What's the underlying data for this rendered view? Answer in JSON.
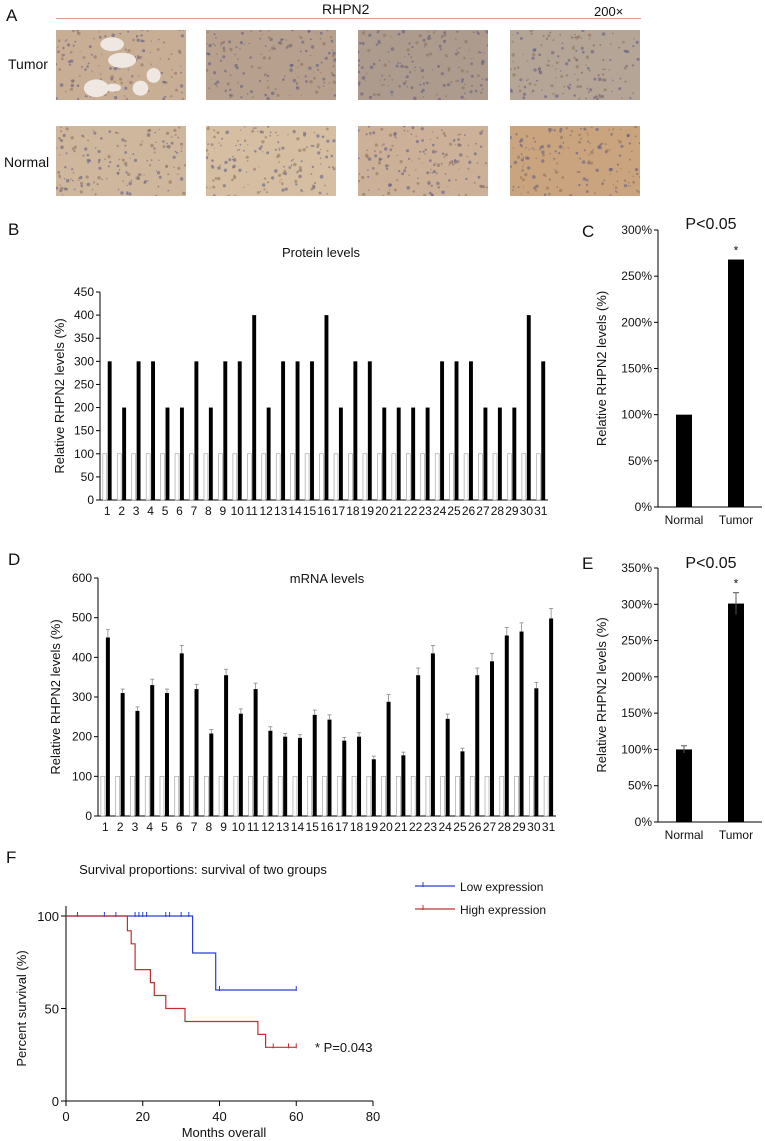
{
  "panel_A": {
    "letter": "A",
    "title": "RHPN2",
    "magnification": "200×",
    "row_labels": [
      "Tumor",
      "Normal"
    ],
    "images": [
      {
        "row": "Tumor",
        "tone": "#c9ae96"
      },
      {
        "row": "Tumor",
        "tone": "#b7a08d"
      },
      {
        "row": "Tumor",
        "tone": "#ad9b8d"
      },
      {
        "row": "Tumor",
        "tone": "#b5a596"
      },
      {
        "row": "Normal",
        "tone": "#cfb79d"
      },
      {
        "row": "Normal",
        "tone": "#d6bea2"
      },
      {
        "row": "Normal",
        "tone": "#ccb097"
      },
      {
        "row": "Normal",
        "tone": "#c9a47e"
      }
    ]
  },
  "panel_B_letter": "B",
  "panel_C_letter": "C",
  "panel_D_letter": "D",
  "panel_E_letter": "E",
  "panel_F_letter": "F",
  "chart_data": [
    {
      "id": "B",
      "type": "bar",
      "title": "Protein levels",
      "xlabel": "",
      "ylabel": "Relative RHPN2 levels (%)",
      "ylim": [
        0,
        450
      ],
      "yticks": [
        0,
        50,
        100,
        150,
        200,
        250,
        300,
        350,
        400,
        450
      ],
      "categories": [
        "1",
        "2",
        "3",
        "4",
        "5",
        "6",
        "7",
        "8",
        "9",
        "10",
        "11",
        "12",
        "13",
        "14",
        "15",
        "16",
        "17",
        "18",
        "19",
        "20",
        "21",
        "22",
        "23",
        "24",
        "25",
        "26",
        "27",
        "28",
        "29",
        "30",
        "31"
      ],
      "series": [
        {
          "values": [
            100,
            100,
            100,
            100,
            100,
            100,
            100,
            100,
            100,
            100,
            100,
            100,
            100,
            100,
            100,
            100,
            100,
            100,
            100,
            100,
            100,
            100,
            100,
            100,
            100,
            100,
            100,
            100,
            100,
            100,
            100
          ],
          "color": "#ffffff"
        },
        {
          "values": [
            300,
            200,
            300,
            300,
            200,
            200,
            300,
            200,
            300,
            300,
            400,
            200,
            300,
            300,
            300,
            400,
            200,
            300,
            300,
            200,
            200,
            200,
            200,
            300,
            300,
            300,
            200,
            200,
            200,
            400,
            300
          ],
          "color": "#000000"
        }
      ],
      "grid": false
    },
    {
      "id": "C",
      "type": "bar",
      "title": "P<0.05",
      "ylabel": "Relative RHPN2 levels (%)",
      "ylim": [
        0,
        300
      ],
      "yticks": [
        "0%",
        "50%",
        "100%",
        "150%",
        "200%",
        "250%",
        "300%"
      ],
      "categories": [
        "Normal",
        "Tumor"
      ],
      "values": [
        100,
        268
      ],
      "annotations": [
        "",
        "*"
      ],
      "grid": false
    },
    {
      "id": "D",
      "type": "bar",
      "title": "mRNA levels",
      "ylabel": "Relative RHPN2 levels (%)",
      "ylim": [
        0,
        600
      ],
      "yticks": [
        0,
        100,
        200,
        300,
        400,
        500,
        600
      ],
      "categories": [
        "1",
        "2",
        "3",
        "4",
        "5",
        "6",
        "7",
        "8",
        "9",
        "10",
        "11",
        "12",
        "13",
        "14",
        "15",
        "16",
        "17",
        "18",
        "19",
        "20",
        "21",
        "22",
        "23",
        "24",
        "25",
        "26",
        "27",
        "28",
        "29",
        "30",
        "31"
      ],
      "series": [
        {
          "values": [
            100,
            100,
            100,
            100,
            100,
            100,
            100,
            100,
            100,
            100,
            100,
            100,
            100,
            100,
            100,
            100,
            100,
            100,
            100,
            100,
            100,
            100,
            100,
            100,
            100,
            100,
            100,
            100,
            100,
            100,
            100
          ],
          "color": "#ffffff"
        },
        {
          "values": [
            450,
            310,
            265,
            330,
            310,
            410,
            320,
            208,
            355,
            258,
            320,
            215,
            200,
            197,
            255,
            243,
            190,
            200,
            143,
            288,
            153,
            355,
            410,
            245,
            163,
            355,
            390,
            455,
            465,
            322,
            498
          ],
          "errors": [
            20,
            10,
            10,
            15,
            10,
            20,
            12,
            10,
            15,
            12,
            15,
            10,
            8,
            8,
            12,
            12,
            8,
            10,
            8,
            18,
            8,
            18,
            20,
            12,
            8,
            18,
            20,
            20,
            22,
            15,
            25
          ],
          "color": "#000000"
        }
      ],
      "grid": false
    },
    {
      "id": "E",
      "type": "bar",
      "title": "P<0.05",
      "ylabel": "Relative RHPN2 levels (%)",
      "ylim": [
        0,
        350
      ],
      "yticks": [
        "0%",
        "50%",
        "100%",
        "150%",
        "200%",
        "250%",
        "300%",
        "350%"
      ],
      "categories": [
        "Normal",
        "Tumor"
      ],
      "values": [
        100,
        301
      ],
      "errors": [
        5,
        15
      ],
      "annotations": [
        "",
        "*"
      ],
      "grid": false
    },
    {
      "id": "F",
      "type": "line",
      "title": "Survival proportions: survival of two groups",
      "xlabel": "Months overall",
      "ylabel": "Percent survival (%)",
      "xlim": [
        0,
        80
      ],
      "ylim": [
        0,
        100
      ],
      "xticks": [
        0,
        20,
        40,
        60,
        80
      ],
      "yticks": [
        0,
        50,
        100
      ],
      "legend_position": "top-right",
      "annotation": "* P=0.043",
      "series": [
        {
          "name": "Low expression",
          "color": "#2b3fd6",
          "x": [
            0,
            33,
            33,
            39,
            39,
            60
          ],
          "y": [
            100,
            100,
            80,
            80,
            60,
            60
          ],
          "censor_x": [
            3,
            10,
            13,
            18,
            19,
            20,
            21,
            26,
            27,
            30,
            32,
            40,
            60
          ],
          "censor_y": [
            100,
            100,
            100,
            100,
            100,
            100,
            100,
            100,
            100,
            100,
            100,
            60,
            60
          ]
        },
        {
          "name": "High expression",
          "color": "#c03030",
          "x": [
            0,
            16,
            16,
            17,
            17,
            18,
            18,
            22,
            22,
            23,
            23,
            26,
            26,
            31,
            31,
            50,
            50,
            52,
            52,
            60
          ],
          "y": [
            100,
            100,
            92,
            92,
            85,
            85,
            71,
            71,
            64,
            64,
            57,
            57,
            50,
            50,
            43,
            43,
            36,
            36,
            29,
            29
          ],
          "censor_x": [
            54,
            58,
            60
          ],
          "censor_y": [
            29,
            29,
            29
          ]
        }
      ]
    }
  ]
}
